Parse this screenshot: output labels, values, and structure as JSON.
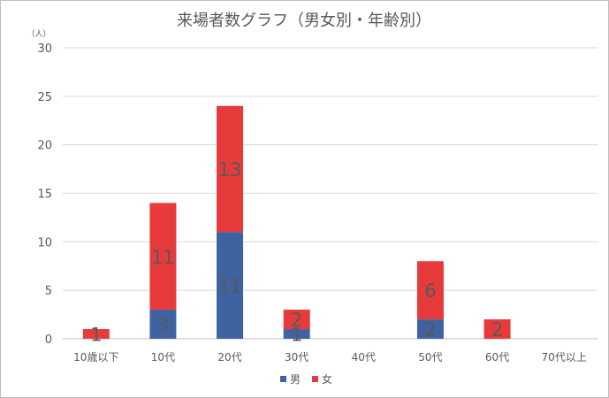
{
  "chart_data": {
    "type": "bar",
    "stacked": true,
    "title": "来場者数グラフ（男女別・年齢別）",
    "ylabel": "（人）",
    "ylim": [
      0,
      30
    ],
    "yticks": [
      "0",
      "5",
      "10",
      "15",
      "20",
      "25",
      "30"
    ],
    "grid": true,
    "legend_position": "bottom",
    "categories": [
      "10歳以下",
      "10代",
      "20代",
      "30代",
      "40代",
      "50代",
      "60代",
      "70代以上"
    ],
    "series": [
      {
        "name": "男",
        "color": "#3F62A0",
        "values": [
          0,
          3,
          11,
          1,
          0,
          2,
          0,
          0
        ],
        "labels": [
          "",
          "3",
          "11",
          "1",
          "",
          "2",
          "",
          ""
        ]
      },
      {
        "name": "女",
        "color": "#E73B3B",
        "values": [
          1,
          11,
          13,
          2,
          0,
          6,
          2,
          0
        ],
        "labels": [
          "1",
          "11",
          "13",
          "2",
          "",
          "6",
          "2",
          ""
        ]
      }
    ]
  }
}
